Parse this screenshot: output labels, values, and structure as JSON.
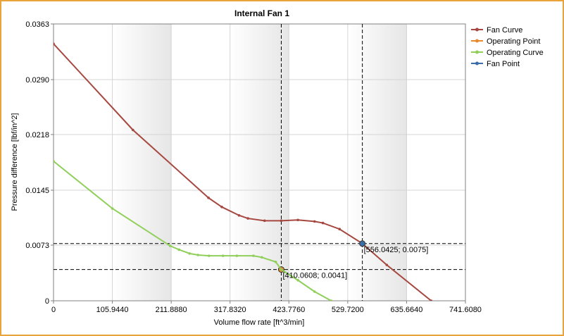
{
  "chart_data": {
    "type": "line",
    "title": "Internal Fan 1",
    "xlabel": "Volume flow rate [ft^3/min]",
    "ylabel": "Pressure difference [lbf/in^2]",
    "xlim": [
      0,
      741.608
    ],
    "ylim": [
      0,
      0.0363
    ],
    "x_ticks": [
      "0",
      "105.9440",
      "211.8880",
      "317.8320",
      "423.7760",
      "529.7200",
      "635.6640",
      "741.6080"
    ],
    "x_tick_values": [
      0,
      105.944,
      211.888,
      317.832,
      423.776,
      529.72,
      635.664,
      741.608
    ],
    "y_ticks": [
      "0",
      "0.0073",
      "0.0145",
      "0.0218",
      "0.0290",
      "0.0363"
    ],
    "y_tick_values": [
      0,
      0.0073,
      0.0145,
      0.0218,
      0.029,
      0.0363
    ],
    "grid": true,
    "shaded_bands": [
      [
        105.944,
        211.888
      ],
      [
        317.832,
        423.776
      ],
      [
        529.72,
        635.664
      ]
    ],
    "legend": {
      "position": "top-right"
    },
    "series": [
      {
        "name": "Fan Curve",
        "color": "#a64840",
        "x": [
          0,
          143,
          279,
          303,
          334,
          350,
          380,
          410,
          440,
          470,
          485,
          515,
          556.0425,
          600,
          680
        ],
        "y": [
          0.0337,
          0.0224,
          0.0135,
          0.0123,
          0.0112,
          0.0108,
          0.0105,
          0.0105,
          0.0106,
          0.0104,
          0.0102,
          0.0094,
          0.0075,
          0.0047,
          0
        ]
      },
      {
        "name": "Operating Point",
        "color": "#e8892e",
        "x": [
          410.0608
        ],
        "y": [
          0.0041
        ]
      },
      {
        "name": "Operating Curve",
        "color": "#8fcf5a",
        "x": [
          0,
          106,
          210,
          226,
          245,
          260,
          280,
          305,
          330,
          360,
          375,
          400,
          410.0608,
          440,
          470,
          500
        ],
        "y": [
          0.0183,
          0.0121,
          0.0072,
          0.0067,
          0.0062,
          0.006,
          0.0059,
          0.0059,
          0.0059,
          0.0059,
          0.0057,
          0.0051,
          0.0041,
          0.0027,
          0.0012,
          0
        ]
      },
      {
        "name": "Fan Point",
        "color": "#3a6ea8",
        "x": [
          556.0425
        ],
        "y": [
          0.0075
        ]
      }
    ],
    "annotations": [
      {
        "x": 556.0425,
        "y": 0.0075,
        "text": "[556.0425; 0.0075]"
      },
      {
        "x": 410.0608,
        "y": 0.0041,
        "text": "[410.0608; 0.0041]"
      }
    ]
  }
}
